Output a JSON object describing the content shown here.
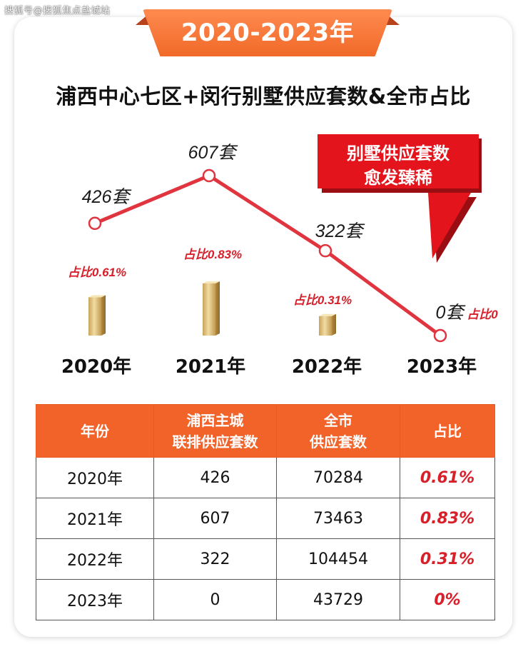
{
  "watermark": "搜狐号@搜狐焦点盐城站",
  "banner": {
    "label": "2020-2023年"
  },
  "title": "浦西中心七区+闵行别墅供应套数&全市占比",
  "callout": {
    "line1": "别墅供应套数",
    "line2": "愈发臻稀"
  },
  "colors": {
    "accent": "#f2632a",
    "line": "#e0353f",
    "pct_text": "#d8202b",
    "bar_gold": "#d9b469",
    "callout_red": "#e3141c"
  },
  "chart_data": {
    "type": "bar+line",
    "categories": [
      "2020年",
      "2021年",
      "2022年",
      "2023年"
    ],
    "series": [
      {
        "kind": "line",
        "values": [
          426,
          607,
          322,
          0
        ],
        "labels": [
          "426套",
          "607套",
          "322套",
          "0套"
        ]
      },
      {
        "kind": "bar",
        "values": [
          0.61,
          0.83,
          0.31,
          0
        ],
        "labels": [
          "占比0.61%",
          "占比0.83%",
          "占比0.31%",
          "占比0"
        ]
      }
    ],
    "title": "浦西中心七区+闵行别墅供应套数&全市占比",
    "xlabel": "",
    "ylabel": "",
    "grid": false,
    "legend": "none"
  },
  "table": {
    "headers": [
      "年份",
      "浦西主城\n联排供应套数",
      "全市\n供应套数",
      "占比"
    ],
    "rows": [
      [
        "2020年",
        "426",
        "70284",
        "0.61%"
      ],
      [
        "2021年",
        "607",
        "73463",
        "0.83%"
      ],
      [
        "2022年",
        "322",
        "104454",
        "0.31%"
      ],
      [
        "2023年",
        "0",
        "43729",
        "0%"
      ]
    ]
  }
}
